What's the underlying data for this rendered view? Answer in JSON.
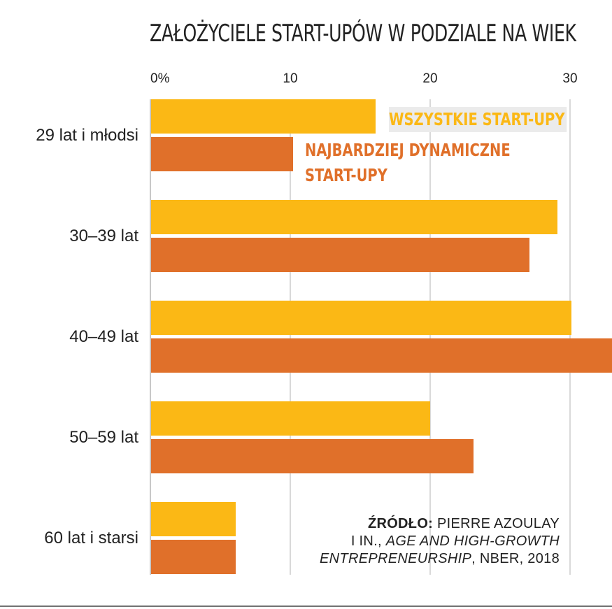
{
  "chart_data": {
    "type": "bar",
    "orientation": "horizontal",
    "title": "ZAŁOŻYCIELE START-UPÓW W PODZIALE NA WIEK",
    "categories": [
      "29 lat i młodsi",
      "30–39 lat",
      "40–49 lat",
      "50–59 lat",
      "60 lat i starsi"
    ],
    "series": [
      {
        "name": "WSZYSTKIE START-UPY",
        "color": "#fbb815",
        "values": [
          16.1,
          29.1,
          30.1,
          20.0,
          6.1
        ]
      },
      {
        "name": "NAJBARDZIEJ DYNAMICZNE START-UPY",
        "color": "#e0702a",
        "values": [
          10.2,
          27.1,
          33.2,
          23.1,
          6.1
        ]
      }
    ],
    "xticks": [
      "0%",
      "10",
      "20",
      "30"
    ],
    "xlim": [
      0,
      33
    ],
    "grid": true,
    "source": {
      "label": "ŹRÓDŁO:",
      "line1": "PIERRE AZOULAY",
      "line2_prefix": "I IN., ",
      "line2_italic": "AGE AND HIGH-GROWTH",
      "line3_italic": "ENTREPRENEURSHIP",
      "line3_suffix": ", NBER, 2018"
    },
    "legend_all_label": "WSZYSTKIE START-UPY",
    "legend_dynamic_label_lines": [
      "NAJBARDZIEJ DYNAMICZNE",
      "START-UPY"
    ]
  }
}
